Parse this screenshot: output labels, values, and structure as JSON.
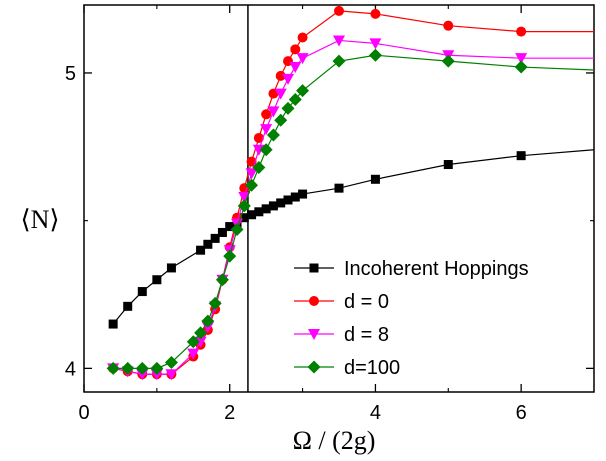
{
  "chart_data": {
    "type": "line",
    "xlabel": "Ω / (2g)",
    "ylabel": "⟨N⟩",
    "xlim": [
      0,
      7
    ],
    "ylim": [
      3.92,
      5.23
    ],
    "x_ticks": [
      0,
      2,
      4,
      6
    ],
    "y_ticks": [
      4,
      5
    ],
    "grid": false,
    "legend_position": "lower-right",
    "reference_vline": 2.25,
    "series": [
      {
        "name": "Incoherent Hoppings",
        "color": "#000000",
        "marker": "square",
        "x": [
          0.4,
          0.6,
          0.8,
          1.0,
          1.2,
          1.6,
          1.7,
          1.8,
          1.9,
          2.0,
          2.1,
          2.2,
          2.3,
          2.4,
          2.5,
          2.6,
          2.7,
          2.8,
          2.9,
          3.0,
          3.5,
          4.0,
          5.0,
          6.0
        ],
        "y": [
          4.15,
          4.21,
          4.26,
          4.3,
          4.34,
          4.4,
          4.42,
          4.44,
          4.46,
          4.48,
          4.49,
          4.51,
          4.52,
          4.53,
          4.54,
          4.55,
          4.56,
          4.57,
          4.58,
          4.59,
          4.61,
          4.64,
          4.69,
          4.72
        ],
        "line_x": [
          0.4,
          0.6,
          0.8,
          1.0,
          1.2,
          1.6,
          1.7,
          1.8,
          1.9,
          2.0,
          2.1,
          2.2,
          2.3,
          2.4,
          2.5,
          2.6,
          2.7,
          2.8,
          2.9,
          3.0,
          3.5,
          4.0,
          5.0,
          6.0,
          7.0
        ],
        "line_y": [
          4.15,
          4.21,
          4.26,
          4.3,
          4.34,
          4.4,
          4.42,
          4.44,
          4.46,
          4.48,
          4.49,
          4.51,
          4.52,
          4.53,
          4.54,
          4.55,
          4.56,
          4.57,
          4.58,
          4.59,
          4.61,
          4.64,
          4.69,
          4.72,
          4.74
        ]
      },
      {
        "name": "d = 0",
        "color": "#ff0000",
        "marker": "circle",
        "x": [
          0.4,
          0.6,
          0.8,
          1.0,
          1.2,
          1.5,
          1.6,
          1.7,
          1.8,
          1.9,
          2.0,
          2.1,
          2.2,
          2.3,
          2.4,
          2.5,
          2.6,
          2.7,
          2.8,
          2.9,
          3.0,
          3.5,
          4.0,
          5.0,
          6.0
        ],
        "y": [
          4.0,
          3.99,
          3.98,
          3.98,
          3.98,
          4.04,
          4.08,
          4.13,
          4.2,
          4.3,
          4.41,
          4.51,
          4.61,
          4.7,
          4.78,
          4.86,
          4.93,
          4.99,
          5.04,
          5.08,
          5.12,
          5.21,
          5.2,
          5.16,
          5.14
        ],
        "line_x": [
          0.4,
          0.6,
          0.8,
          1.0,
          1.2,
          1.5,
          1.6,
          1.7,
          1.8,
          1.9,
          2.0,
          2.1,
          2.2,
          2.3,
          2.4,
          2.5,
          2.6,
          2.7,
          2.8,
          2.9,
          3.0,
          3.5,
          4.0,
          5.0,
          6.0,
          7.0
        ],
        "line_y": [
          4.0,
          3.99,
          3.98,
          3.98,
          3.98,
          4.04,
          4.08,
          4.13,
          4.2,
          4.3,
          4.41,
          4.51,
          4.61,
          4.7,
          4.78,
          4.86,
          4.93,
          4.99,
          5.04,
          5.08,
          5.12,
          5.21,
          5.2,
          5.16,
          5.14,
          5.14
        ]
      },
      {
        "name": "d = 8",
        "color": "#ff00ff",
        "marker": "triangle-down",
        "x": [
          0.4,
          0.6,
          0.8,
          1.0,
          1.2,
          1.5,
          1.6,
          1.7,
          1.8,
          1.9,
          2.0,
          2.1,
          2.2,
          2.3,
          2.4,
          2.5,
          2.6,
          2.7,
          2.8,
          2.9,
          3.0,
          3.5,
          4.0,
          5.0,
          6.0
        ],
        "y": [
          4.0,
          3.99,
          3.98,
          3.98,
          3.98,
          4.05,
          4.09,
          4.14,
          4.21,
          4.3,
          4.4,
          4.49,
          4.58,
          4.66,
          4.74,
          4.81,
          4.87,
          4.93,
          4.98,
          5.02,
          5.05,
          5.11,
          5.1,
          5.06,
          5.05
        ],
        "line_x": [
          0.4,
          0.6,
          0.8,
          1.0,
          1.2,
          1.5,
          1.6,
          1.7,
          1.8,
          1.9,
          2.0,
          2.1,
          2.2,
          2.3,
          2.4,
          2.5,
          2.6,
          2.7,
          2.8,
          2.9,
          3.0,
          3.5,
          4.0,
          5.0,
          6.0,
          7.0
        ],
        "line_y": [
          4.0,
          3.99,
          3.98,
          3.98,
          3.98,
          4.05,
          4.09,
          4.14,
          4.21,
          4.3,
          4.4,
          4.49,
          4.58,
          4.66,
          4.74,
          4.81,
          4.87,
          4.93,
          4.98,
          5.02,
          5.05,
          5.11,
          5.1,
          5.06,
          5.05,
          5.05
        ]
      },
      {
        "name": "d=100",
        "color": "#008000",
        "marker": "diamond",
        "x": [
          0.4,
          0.6,
          0.8,
          1.0,
          1.2,
          1.5,
          1.6,
          1.7,
          1.8,
          1.9,
          2.0,
          2.1,
          2.2,
          2.3,
          2.4,
          2.5,
          2.6,
          2.7,
          2.8,
          2.9,
          3.0,
          3.5,
          4.0,
          5.0,
          6.0
        ],
        "y": [
          4.0,
          4.0,
          4.0,
          4.0,
          4.02,
          4.09,
          4.12,
          4.16,
          4.22,
          4.3,
          4.38,
          4.47,
          4.55,
          4.62,
          4.68,
          4.74,
          4.79,
          4.84,
          4.88,
          4.91,
          4.94,
          5.04,
          5.06,
          5.04,
          5.02
        ],
        "line_x": [
          0.4,
          0.6,
          0.8,
          1.0,
          1.2,
          1.5,
          1.6,
          1.7,
          1.8,
          1.9,
          2.0,
          2.1,
          2.2,
          2.3,
          2.4,
          2.5,
          2.6,
          2.7,
          2.8,
          2.9,
          3.0,
          3.5,
          4.0,
          5.0,
          6.0,
          7.0
        ],
        "line_y": [
          4.0,
          4.0,
          4.0,
          4.0,
          4.02,
          4.09,
          4.12,
          4.16,
          4.22,
          4.3,
          4.38,
          4.47,
          4.55,
          4.62,
          4.68,
          4.74,
          4.79,
          4.84,
          4.88,
          4.91,
          4.94,
          5.04,
          5.06,
          5.04,
          5.02,
          5.01
        ]
      }
    ]
  }
}
